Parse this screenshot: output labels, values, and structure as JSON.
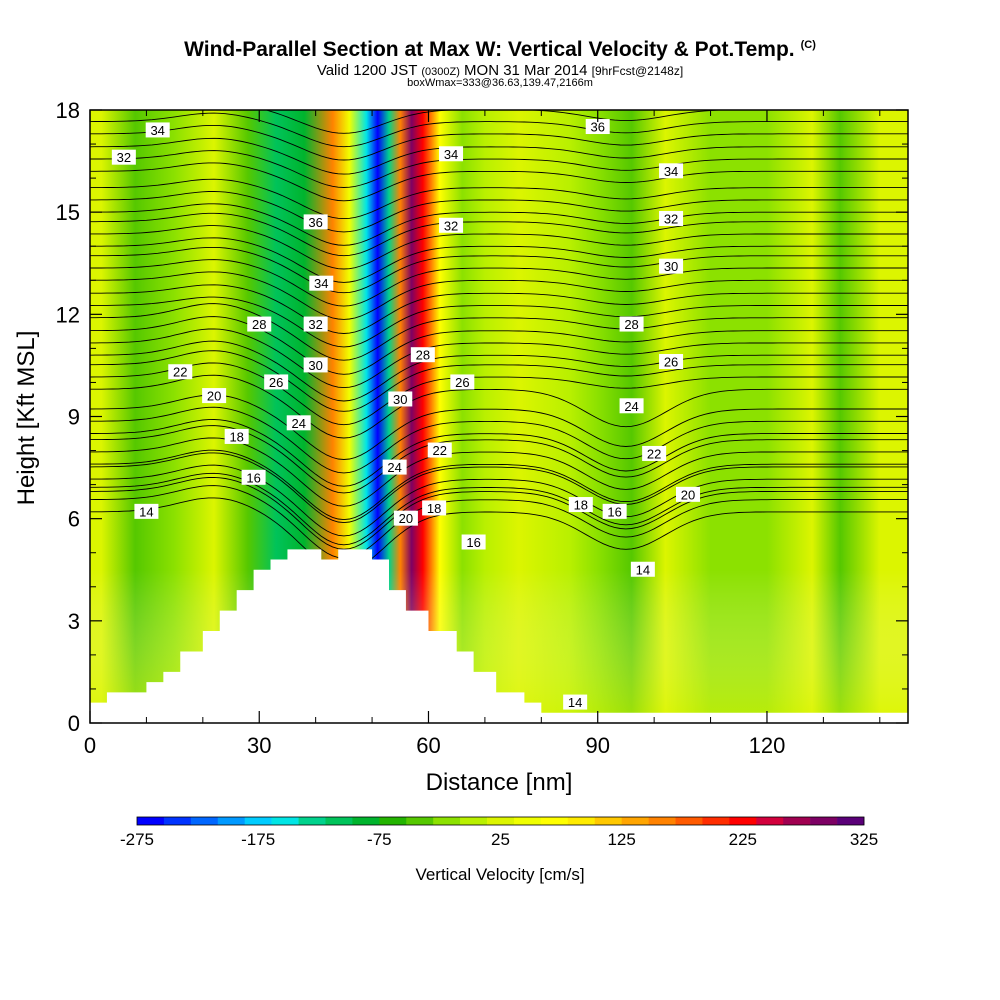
{
  "header": {
    "title": "Wind-Parallel Section at Max W: Vertical Velocity & Pot.Temp.",
    "copyright": "(C)",
    "valid_prefix": "Valid 1200 JST",
    "valid_zulu": "(0300Z)",
    "valid_date": "MON 31 Mar 2014",
    "forecast": "[9hrFcst@2148z]",
    "box_info": "boxWmax=333@36.63,139.47,2166m"
  },
  "chart_data": {
    "type": "heatmap",
    "xlabel": "Distance [nm]",
    "ylabel": "Height [Kft MSL]",
    "xlim": [
      0,
      145
    ],
    "ylim": [
      0,
      18
    ],
    "x_ticks": [
      0,
      30,
      60,
      90,
      120
    ],
    "y_ticks": [
      0,
      3,
      6,
      9,
      12,
      15,
      18
    ],
    "colorbar": {
      "label": "Vertical Velocity [cm/s]",
      "tick_labels": [
        "-275",
        "-175",
        "-75",
        "25",
        "125",
        "225",
        "325"
      ],
      "tick_values": [
        -275,
        -175,
        -75,
        25,
        125,
        225,
        325
      ],
      "range": [
        -275,
        325
      ],
      "colors": [
        "#0000ff",
        "#0033ff",
        "#0066ff",
        "#0099ff",
        "#00ccff",
        "#00e5e5",
        "#00d28c",
        "#00c35a",
        "#00b42d",
        "#23b400",
        "#55c800",
        "#8ce100",
        "#b9f000",
        "#dcf500",
        "#f0ff00",
        "#ffff00",
        "#ffeb00",
        "#ffc800",
        "#ffa500",
        "#ff8200",
        "#ff5a00",
        "#ff2d00",
        "#ff0000",
        "#d2003c",
        "#a00050",
        "#7d0064",
        "#5a0078"
      ]
    },
    "velocity_field": [
      {
        "x": 2,
        "w": 15
      },
      {
        "x": 8,
        "w": -45
      },
      {
        "x": 15,
        "w": -25
      },
      {
        "x": 22,
        "w": 20
      },
      {
        "x": 28,
        "w": -40
      },
      {
        "x": 33,
        "w": -110
      },
      {
        "x": 38,
        "w": -90
      },
      {
        "x": 43,
        "w": 150
      },
      {
        "x": 46,
        "w": 40
      },
      {
        "x": 49,
        "w": -150
      },
      {
        "x": 51,
        "w": -270
      },
      {
        "x": 53,
        "w": -130
      },
      {
        "x": 55,
        "w": 160
      },
      {
        "x": 57,
        "w": 290
      },
      {
        "x": 59,
        "w": 220
      },
      {
        "x": 62,
        "w": 80
      },
      {
        "x": 66,
        "w": -30
      },
      {
        "x": 70,
        "w": 10
      },
      {
        "x": 76,
        "w": 25
      },
      {
        "x": 85,
        "w": 10
      },
      {
        "x": 90,
        "w": -20
      },
      {
        "x": 96,
        "w": -45
      },
      {
        "x": 102,
        "w": 30
      },
      {
        "x": 110,
        "w": -15
      },
      {
        "x": 120,
        "w": -25
      },
      {
        "x": 128,
        "w": 20
      },
      {
        "x": 133,
        "w": -40
      },
      {
        "x": 140,
        "w": 15
      }
    ],
    "terrain": [
      {
        "x": 0,
        "h": 0.6
      },
      {
        "x": 3,
        "h": 0.9
      },
      {
        "x": 10,
        "h": 1.2
      },
      {
        "x": 13,
        "h": 1.5
      },
      {
        "x": 16,
        "h": 2.1
      },
      {
        "x": 20,
        "h": 2.7
      },
      {
        "x": 23,
        "h": 3.3
      },
      {
        "x": 26,
        "h": 3.9
      },
      {
        "x": 29,
        "h": 4.5
      },
      {
        "x": 32,
        "h": 4.8
      },
      {
        "x": 35,
        "h": 5.1
      },
      {
        "x": 41,
        "h": 4.8
      },
      {
        "x": 44,
        "h": 5.1
      },
      {
        "x": 50,
        "h": 4.8
      },
      {
        "x": 53,
        "h": 3.9
      },
      {
        "x": 56,
        "h": 3.3
      },
      {
        "x": 60,
        "h": 2.7
      },
      {
        "x": 65,
        "h": 2.1
      },
      {
        "x": 68,
        "h": 1.5
      },
      {
        "x": 72,
        "h": 0.9
      },
      {
        "x": 77,
        "h": 0.6
      },
      {
        "x": 80,
        "h": 0.3
      },
      {
        "x": 145,
        "h": 0.3
      }
    ],
    "isentropes": [
      {
        "label": "14",
        "base": 6.2,
        "label_pos": [
          [
            10,
            6.2
          ],
          [
            98,
            4.5
          ],
          [
            86,
            0.6
          ]
        ]
      },
      {
        "label": "16",
        "base": 6.8,
        "label_pos": [
          [
            29,
            7.2
          ],
          [
            68,
            5.3
          ],
          [
            93,
            6.2
          ]
        ]
      },
      {
        "label": "18",
        "base": 7.6,
        "label_pos": [
          [
            26,
            8.4
          ],
          [
            61,
            6.3
          ],
          [
            87,
            6.4
          ]
        ]
      },
      {
        "label": "20",
        "base": 8.5,
        "label_pos": [
          [
            22,
            9.6
          ],
          [
            56,
            6.0
          ],
          [
            106,
            6.7
          ]
        ]
      },
      {
        "label": "22",
        "base": 9.8,
        "label_pos": [
          [
            16,
            10.3
          ],
          [
            62,
            8.0
          ],
          [
            100,
            7.9
          ]
        ]
      },
      {
        "label": "24",
        "base": 10.8,
        "label_pos": [
          [
            37,
            8.8
          ],
          [
            54,
            7.5
          ],
          [
            96,
            9.3
          ]
        ]
      },
      {
        "label": "26",
        "base": 11.9,
        "label_pos": [
          [
            33,
            10.0
          ],
          [
            66,
            10.0
          ],
          [
            103,
            10.6
          ]
        ]
      },
      {
        "label": "28",
        "base": 13.0,
        "label_pos": [
          [
            30,
            11.7
          ],
          [
            59,
            10.8
          ],
          [
            96,
            11.7
          ]
        ]
      },
      {
        "label": "30",
        "base": 14.0,
        "label_pos": [
          [
            40,
            10.5
          ],
          [
            55,
            9.5
          ],
          [
            103,
            13.4
          ]
        ]
      },
      {
        "label": "32",
        "base": 15.0,
        "label_pos": [
          [
            6,
            16.6
          ],
          [
            40,
            11.7
          ],
          [
            64,
            14.6
          ],
          [
            103,
            14.8
          ]
        ]
      },
      {
        "label": "34",
        "base": 16.2,
        "label_pos": [
          [
            12,
            17.4
          ],
          [
            41,
            12.9
          ],
          [
            64,
            16.7
          ],
          [
            103,
            16.2
          ]
        ]
      },
      {
        "label": "36",
        "base": 17.3,
        "label_pos": [
          [
            40,
            14.7
          ],
          [
            90,
            17.5
          ]
        ]
      }
    ]
  }
}
